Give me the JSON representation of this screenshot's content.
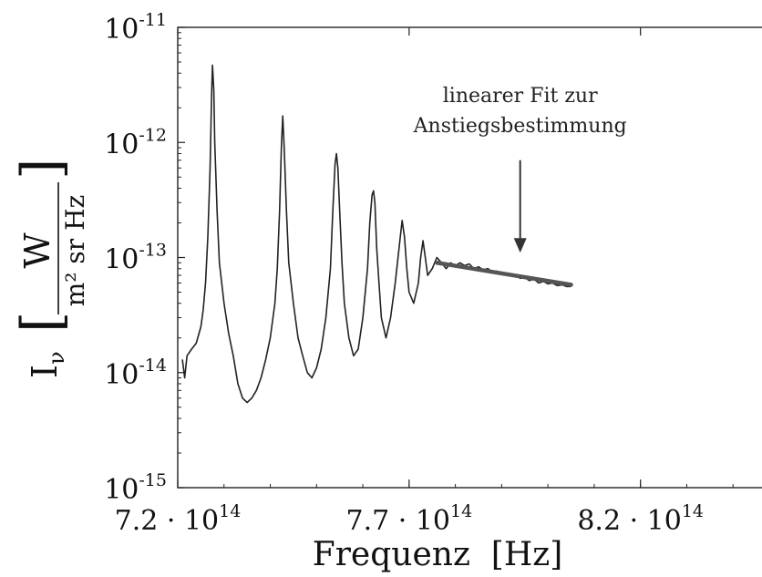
{
  "chart_data": {
    "type": "line",
    "title": "",
    "xlabel": "Frequenz  [Hz]",
    "ylabel": {
      "symbol": "I",
      "subscript": "ν",
      "unit_numerator": "W",
      "unit_denominator": "m² sr Hz"
    },
    "x_scale": "linear",
    "y_scale": "log",
    "xlim": [
      720000000000000.0,
      850000000000000.0
    ],
    "ylim": [
      1e-15,
      1e-11
    ],
    "x_ticks": [
      {
        "value": 720000000000000.0,
        "mantissa": "7.2 · 10",
        "exponent": "14"
      },
      {
        "value": 770000000000000.0,
        "mantissa": "7.7 · 10",
        "exponent": "14"
      },
      {
        "value": 820000000000000.0,
        "mantissa": "8.2 · 10",
        "exponent": "14"
      }
    ],
    "y_ticks": [
      {
        "value": 1e-11,
        "mantissa": "10",
        "exponent": "-11"
      },
      {
        "value": 1e-12,
        "mantissa": "10",
        "exponent": "-12"
      },
      {
        "value": 1e-13,
        "mantissa": "10",
        "exponent": "-13"
      },
      {
        "value": 1e-14,
        "mantissa": "10",
        "exponent": "-14"
      },
      {
        "value": 1e-15,
        "mantissa": "10",
        "exponent": "-15"
      }
    ],
    "grid": false,
    "series": [
      {
        "color": "#222222",
        "points": [
          [
            721000000000000.0,
            1.3e-14
          ],
          [
            721500000000000.0,
            9e-15
          ],
          [
            722000000000000.0,
            1.4e-14
          ],
          [
            723000000000000.0,
            1.6e-14
          ],
          [
            724000000000000.0,
            1.8e-14
          ],
          [
            725000000000000.0,
            2.5e-14
          ],
          [
            725500000000000.0,
            3.5e-14
          ],
          [
            726000000000000.0,
            6e-14
          ],
          [
            726500000000000.0,
            1.5e-13
          ],
          [
            727000000000000.0,
            6e-13
          ],
          [
            727300000000000.0,
            2.5e-12
          ],
          [
            727500000000000.0,
            4.7e-12
          ],
          [
            727800000000000.0,
            2.8e-12
          ],
          [
            728000000000000.0,
            1e-12
          ],
          [
            728500000000000.0,
            2.5e-13
          ],
          [
            729000000000000.0,
            9e-14
          ],
          [
            730000000000000.0,
            4e-14
          ],
          [
            731000000000000.0,
            2.2e-14
          ],
          [
            732000000000000.0,
            1.4e-14
          ],
          [
            733000000000000.0,
            8e-15
          ],
          [
            734000000000000.0,
            6e-15
          ],
          [
            735000000000000.0,
            5.5e-15
          ],
          [
            736000000000000.0,
            6e-15
          ],
          [
            737000000000000.0,
            7e-15
          ],
          [
            738000000000000.0,
            9e-15
          ],
          [
            739000000000000.0,
            1.3e-14
          ],
          [
            740000000000000.0,
            2e-14
          ],
          [
            741000000000000.0,
            4e-14
          ],
          [
            741500000000000.0,
            8e-14
          ],
          [
            742000000000000.0,
            2.5e-13
          ],
          [
            742400000000000.0,
            9e-13
          ],
          [
            742700000000000.0,
            1.7e-12
          ],
          [
            743000000000000.0,
            9e-13
          ],
          [
            743500000000000.0,
            2.5e-13
          ],
          [
            744000000000000.0,
            9e-14
          ],
          [
            745000000000000.0,
            4e-14
          ],
          [
            746000000000000.0,
            2e-14
          ],
          [
            747000000000000.0,
            1.4e-14
          ],
          [
            748000000000000.0,
            1e-14
          ],
          [
            749000000000000.0,
            9e-15
          ],
          [
            750000000000000.0,
            1.1e-14
          ],
          [
            751000000000000.0,
            1.6e-14
          ],
          [
            752000000000000.0,
            3e-14
          ],
          [
            753000000000000.0,
            8e-14
          ],
          [
            753500000000000.0,
            2.5e-13
          ],
          [
            754000000000000.0,
            6.5e-13
          ],
          [
            754300000000000.0,
            8e-13
          ],
          [
            754600000000000.0,
            6e-13
          ],
          [
            755000000000000.0,
            2.5e-13
          ],
          [
            755500000000000.0,
            9e-14
          ],
          [
            756000000000000.0,
            4e-14
          ],
          [
            757000000000000.0,
            2e-14
          ],
          [
            758000000000000.0,
            1.4e-14
          ],
          [
            759000000000000.0,
            1.6e-14
          ],
          [
            760000000000000.0,
            3e-14
          ],
          [
            761000000000000.0,
            8e-14
          ],
          [
            761500000000000.0,
            2e-13
          ],
          [
            762000000000000.0,
            3.5e-13
          ],
          [
            762300000000000.0,
            3.8e-13
          ],
          [
            762600000000000.0,
            3e-13
          ],
          [
            763000000000000.0,
            1.2e-13
          ],
          [
            763500000000000.0,
            6e-14
          ],
          [
            764000000000000.0,
            3e-14
          ],
          [
            765000000000000.0,
            2e-14
          ],
          [
            766000000000000.0,
            3e-14
          ],
          [
            767000000000000.0,
            6e-14
          ],
          [
            768000000000000.0,
            1.4e-13
          ],
          [
            768500000000000.0,
            2.1e-13
          ],
          [
            769000000000000.0,
            1.5e-13
          ],
          [
            769500000000000.0,
            8e-14
          ],
          [
            770000000000000.0,
            5e-14
          ],
          [
            771000000000000.0,
            4e-14
          ],
          [
            772000000000000.0,
            6e-14
          ],
          [
            772500000000000.0,
            1e-13
          ],
          [
            773000000000000.0,
            1.4e-13
          ],
          [
            773500000000000.0,
            1e-13
          ],
          [
            774000000000000.0,
            7e-14
          ],
          [
            775000000000000.0,
            8e-14
          ],
          [
            776000000000000.0,
            1e-13
          ],
          [
            777000000000000.0,
            9e-14
          ],
          [
            778000000000000.0,
            8e-14
          ],
          [
            779000000000000.0,
            9e-14
          ],
          [
            780000000000000.0,
            8.5e-14
          ],
          [
            781000000000000.0,
            9e-14
          ],
          [
            782000000000000.0,
            8.5e-14
          ],
          [
            783000000000000.0,
            8.8e-14
          ],
          [
            784000000000000.0,
            8e-14
          ],
          [
            785000000000000.0,
            8.3e-14
          ],
          [
            786000000000000.0,
            7.8e-14
          ],
          [
            787000000000000.0,
            8e-14
          ],
          [
            788000000000000.0,
            7.5e-14
          ],
          [
            789000000000000.0,
            7.6e-14
          ],
          [
            790000000000000.0,
            7.2e-14
          ],
          [
            791000000000000.0,
            7.3e-14
          ],
          [
            792000000000000.0,
            6.9e-14
          ],
          [
            793000000000000.0,
            7e-14
          ],
          [
            794000000000000.0,
            6.6e-14
          ],
          [
            795000000000000.0,
            6.7e-14
          ],
          [
            796000000000000.0,
            6.3e-14
          ],
          [
            797000000000000.0,
            6.5e-14
          ],
          [
            798000000000000.0,
            6e-14
          ],
          [
            799000000000000.0,
            6.2e-14
          ],
          [
            800000000000000.0,
            5.9e-14
          ],
          [
            801000000000000.0,
            6e-14
          ],
          [
            802000000000000.0,
            5.7e-14
          ],
          [
            803000000000000.0,
            5.8e-14
          ],
          [
            804000000000000.0,
            5.6e-14
          ],
          [
            805000000000000.0,
            5.6e-14
          ]
        ]
      }
    ],
    "fit_line": {
      "color": "#555555",
      "x": [
        776000000000000.0,
        805000000000000.0
      ],
      "y": [
        9e-14,
        5.8e-14
      ]
    },
    "annotation": {
      "lines": [
        "linearer Fit zur",
        "Anstiegsbestimmung"
      ],
      "arrow_x": 794000000000000.0,
      "arrow_from_y": 7e-13,
      "arrow_to_y": 1.1e-13
    }
  }
}
